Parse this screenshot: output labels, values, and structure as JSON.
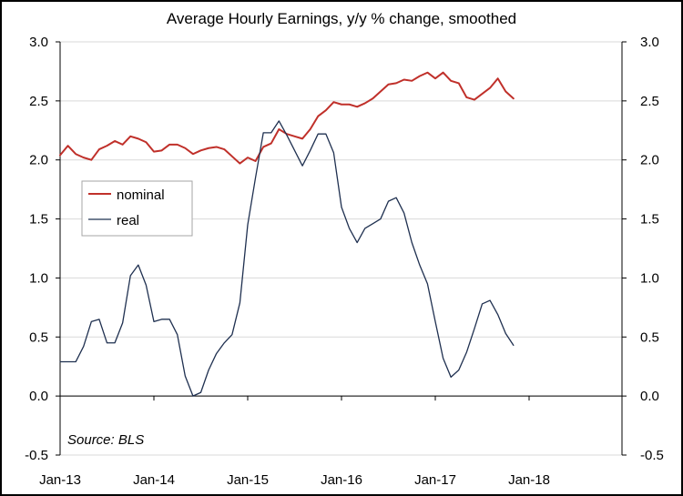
{
  "chart_data": {
    "type": "line",
    "title": "Average Hourly Earnings, y/y % change, smoothed",
    "source": "Source: BLS",
    "ylim": [
      -0.5,
      3.0
    ],
    "y_ticks": [
      "-0.5",
      "0.0",
      "0.5",
      "1.0",
      "1.5",
      "2.0",
      "2.5",
      "3.0"
    ],
    "y_tick_values": [
      -0.5,
      0,
      0.5,
      1.0,
      1.5,
      2.0,
      2.5,
      3.0
    ],
    "x_ticks": [
      "Jan-13",
      "Jan-14",
      "Jan-15",
      "Jan-16",
      "Jan-17",
      "Jan-18"
    ],
    "grid": "horizontal",
    "legend_position": "left",
    "x_start": "Jan-13",
    "x_step": "month",
    "series": [
      {
        "name": "nominal",
        "color": "#C0302A",
        "values": [
          2.04,
          2.12,
          2.05,
          2.02,
          2.0,
          2.09,
          2.12,
          2.16,
          2.13,
          2.2,
          2.18,
          2.15,
          2.07,
          2.08,
          2.13,
          2.13,
          2.1,
          2.05,
          2.08,
          2.1,
          2.11,
          2.09,
          2.03,
          1.97,
          2.02,
          1.99,
          2.11,
          2.14,
          2.26,
          2.22,
          2.2,
          2.18,
          2.26,
          2.37,
          2.42,
          2.49,
          2.47,
          2.47,
          2.45,
          2.48,
          2.52,
          2.58,
          2.64,
          2.65,
          2.68,
          2.67,
          2.71,
          2.74,
          2.69,
          2.74,
          2.67,
          2.65,
          2.53,
          2.51,
          2.56,
          2.61,
          2.69,
          2.58,
          2.52
        ]
      },
      {
        "name": "real",
        "color": "#1F3050",
        "values": [
          0.29,
          0.29,
          0.29,
          0.42,
          0.63,
          0.65,
          0.45,
          0.45,
          0.62,
          1.02,
          1.11,
          0.94,
          0.63,
          0.65,
          0.65,
          0.52,
          0.17,
          0.0,
          0.03,
          0.22,
          0.36,
          0.45,
          0.52,
          0.79,
          1.45,
          1.85,
          2.23,
          2.23,
          2.33,
          2.21,
          2.08,
          1.95,
          2.08,
          2.22,
          2.22,
          2.06,
          1.6,
          1.42,
          1.3,
          1.42,
          1.46,
          1.5,
          1.65,
          1.68,
          1.55,
          1.3,
          1.11,
          0.95,
          0.63,
          0.32,
          0.16,
          0.22,
          0.37,
          0.57,
          0.78,
          0.81,
          0.69,
          0.53,
          0.43
        ]
      }
    ]
  }
}
